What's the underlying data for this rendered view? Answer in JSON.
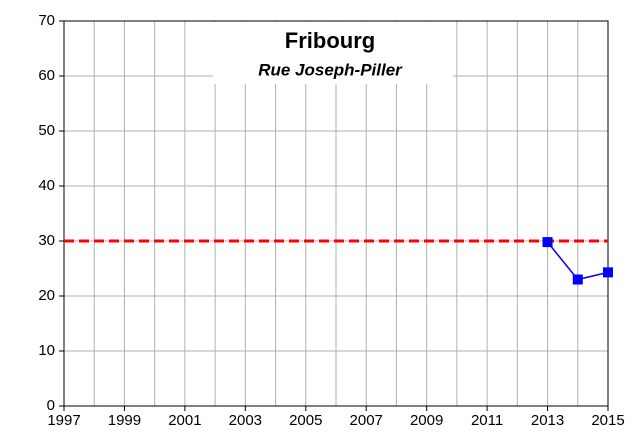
{
  "chart_data": {
    "type": "line",
    "title": "Fribourg",
    "subtitle": "Rue Joseph-Piller",
    "x": [
      2013,
      2014,
      2015
    ],
    "series": [
      {
        "color": "#0000ff",
        "values": [
          29.8,
          23,
          24.3
        ]
      }
    ],
    "xlim": [
      1997,
      2015
    ],
    "xticks": [
      1997,
      1999,
      2001,
      2003,
      2005,
      2007,
      2009,
      2011,
      2013,
      2015
    ],
    "xminorticks": [
      1998,
      2000,
      2002,
      2004,
      2006,
      2008,
      2010,
      2012,
      2014
    ],
    "ylim": [
      0,
      70
    ],
    "yticks": [
      0,
      10,
      20,
      30,
      40,
      50,
      60,
      70
    ],
    "grid": true,
    "reference_line": {
      "value": 30,
      "color": "#ff0000",
      "style": "dashed"
    }
  }
}
